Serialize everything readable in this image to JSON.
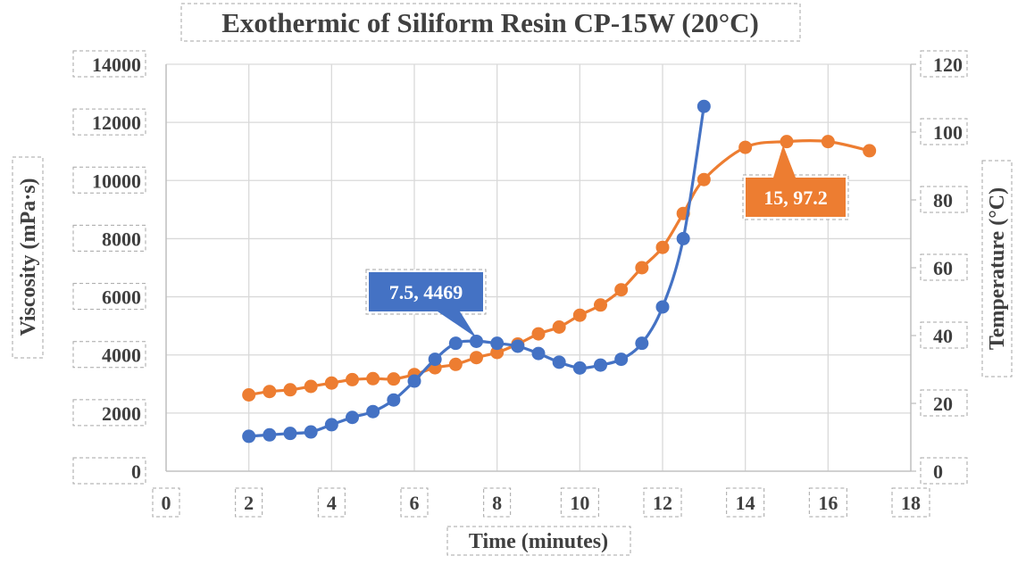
{
  "chart_data": {
    "type": "line",
    "title": "Exothermic of Siliform Resin CP-15W (20°C)",
    "xlabel": "Time (minutes)",
    "ylabel_left": "Viscosity (mPa·s)",
    "ylabel_right": "Temperature (°C)",
    "xlim": [
      0,
      18
    ],
    "ylim_left": [
      0,
      14000
    ],
    "ylim_right": [
      0,
      120
    ],
    "x_ticks": [
      "0",
      "2",
      "4",
      "6",
      "8",
      "10",
      "12",
      "14",
      "16",
      "18"
    ],
    "y_left_ticks": [
      "0",
      "2000",
      "4000",
      "6000",
      "8000",
      "10000",
      "12000",
      "14000"
    ],
    "y_right_ticks": [
      "0",
      "20",
      "40",
      "60",
      "80",
      "100",
      "120"
    ],
    "grid": true,
    "smooth": true,
    "series": [
      {
        "axis": "left",
        "color": "#4472c4",
        "points": [
          [
            2,
            1200
          ],
          [
            2.5,
            1250
          ],
          [
            3,
            1300
          ],
          [
            3.5,
            1350
          ],
          [
            4,
            1600
          ],
          [
            4.5,
            1850
          ],
          [
            5,
            2050
          ],
          [
            5.5,
            2450
          ],
          [
            6,
            3100
          ],
          [
            6.5,
            3850
          ],
          [
            7,
            4400
          ],
          [
            7.5,
            4469
          ],
          [
            8,
            4400
          ],
          [
            8.5,
            4300
          ],
          [
            9,
            4050
          ],
          [
            9.5,
            3750
          ],
          [
            10,
            3550
          ],
          [
            10.5,
            3650
          ],
          [
            11,
            3850
          ],
          [
            11.5,
            4400
          ],
          [
            12,
            5650
          ],
          [
            12.5,
            8000
          ],
          [
            13,
            12550
          ]
        ]
      },
      {
        "axis": "right",
        "color": "#ed7d31",
        "points": [
          [
            2,
            22.5
          ],
          [
            2.5,
            23.5
          ],
          [
            3,
            24
          ],
          [
            3.5,
            25
          ],
          [
            4,
            26
          ],
          [
            4.5,
            27
          ],
          [
            5,
            27.3
          ],
          [
            5.5,
            27.2
          ],
          [
            6,
            28.5
          ],
          [
            6.5,
            30.5
          ],
          [
            7,
            31.5
          ],
          [
            7.5,
            33.5
          ],
          [
            8,
            35
          ],
          [
            8.5,
            37.5
          ],
          [
            9,
            40.5
          ],
          [
            9.5,
            42.5
          ],
          [
            10,
            46
          ],
          [
            10.5,
            49
          ],
          [
            11,
            53.5
          ],
          [
            11.5,
            60
          ],
          [
            12,
            66
          ],
          [
            12.5,
            76
          ],
          [
            13,
            86
          ],
          [
            14,
            95.5
          ],
          [
            15,
            97.2
          ],
          [
            16,
            97.2
          ],
          [
            17,
            94.5
          ]
        ]
      }
    ],
    "annotations": [
      {
        "series": 0,
        "point": [
          7.5,
          4469
        ],
        "label": "7.5, 4469"
      },
      {
        "series": 1,
        "point": [
          15,
          97.2
        ],
        "label": "15, 97.2"
      }
    ]
  }
}
